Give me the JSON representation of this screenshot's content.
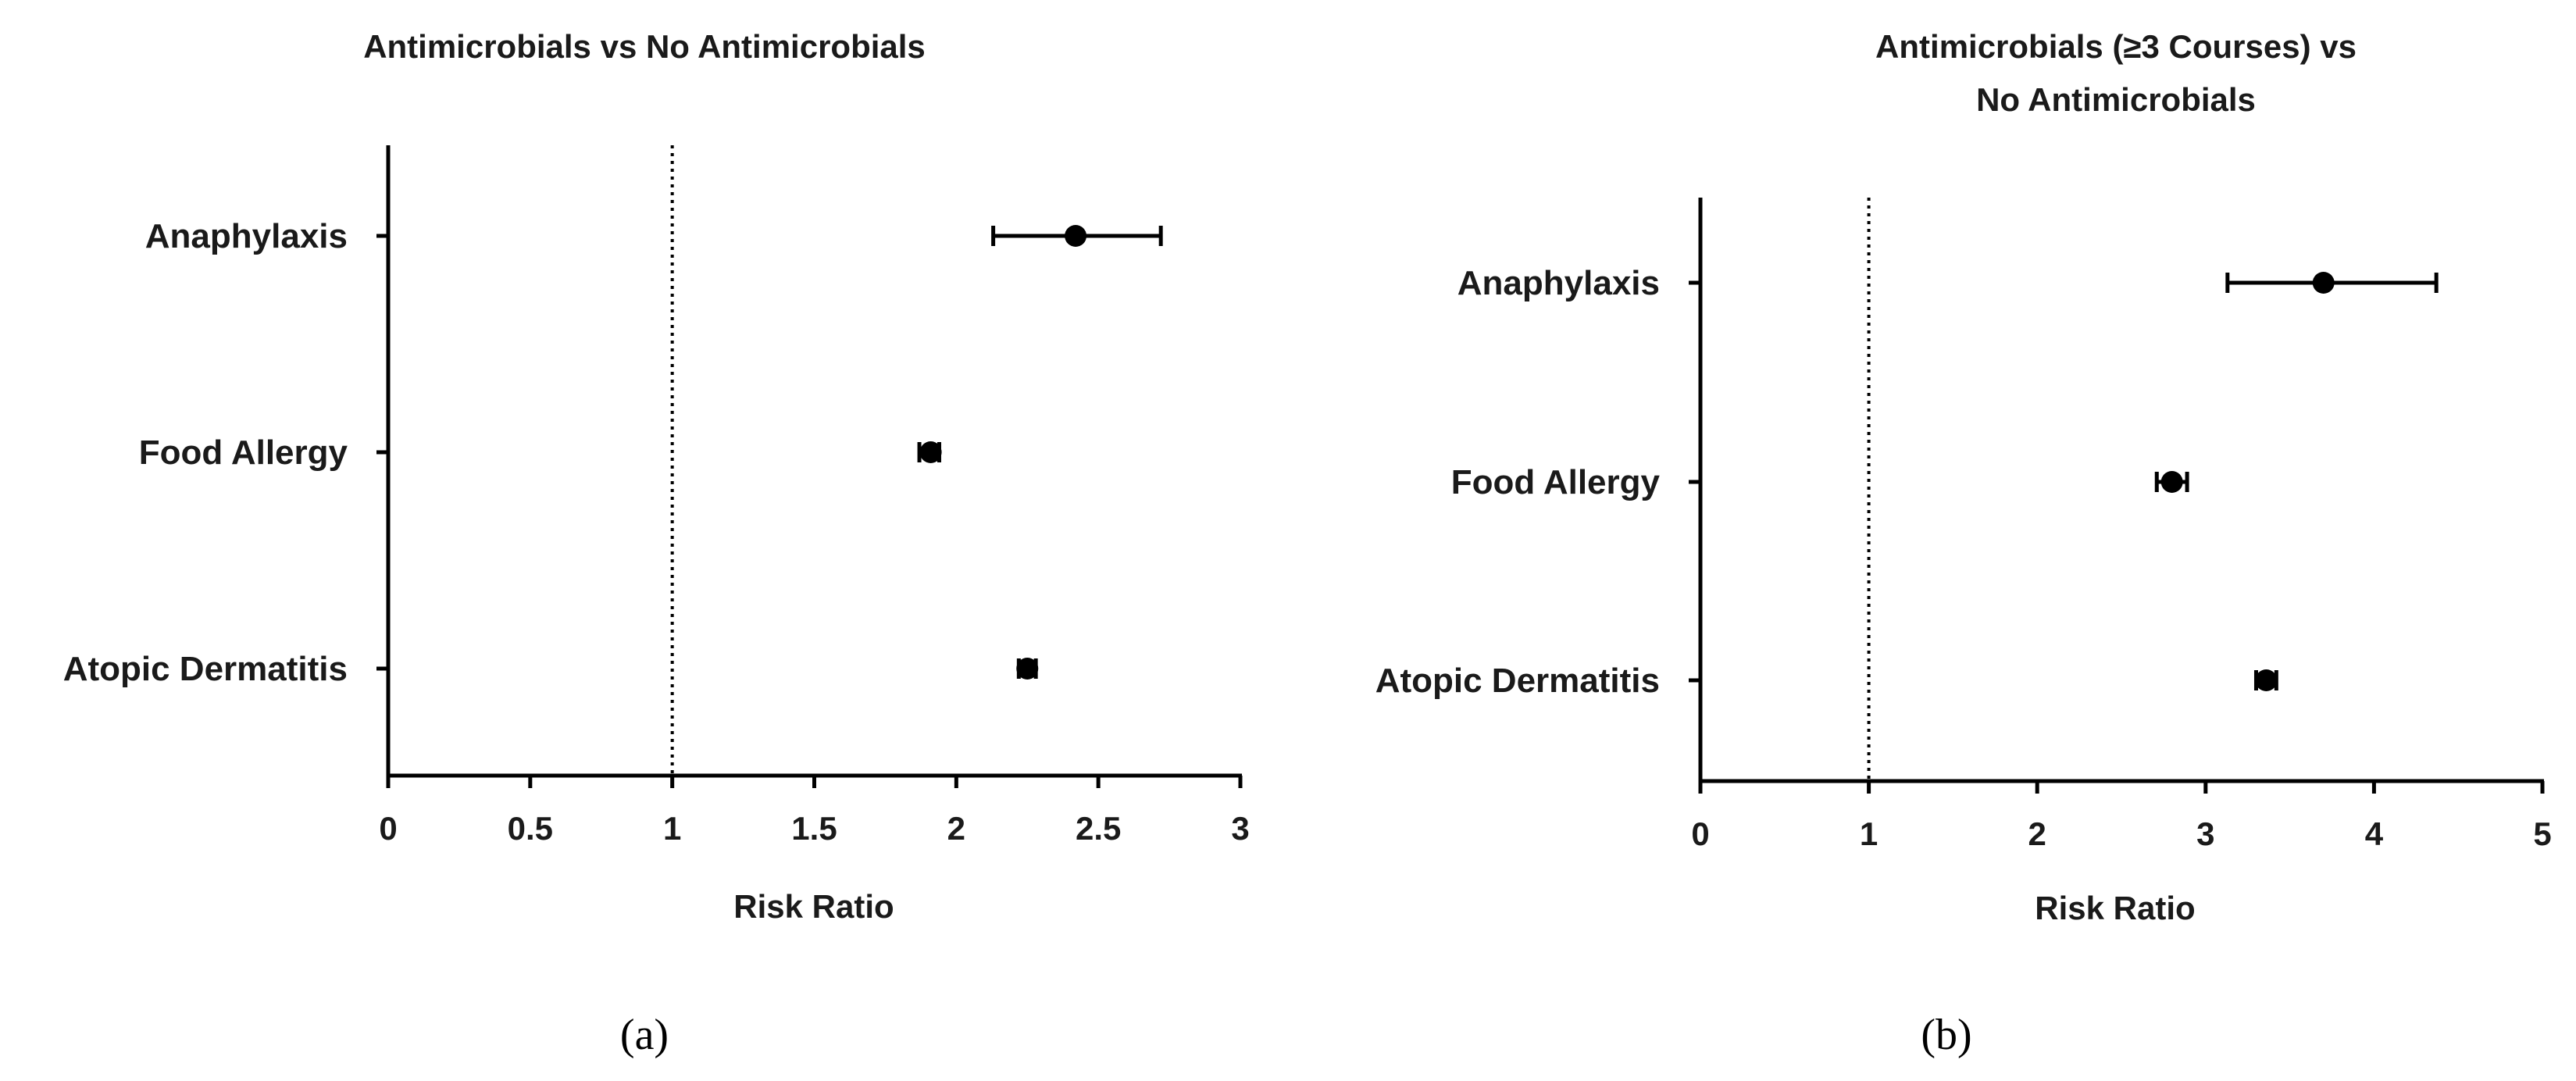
{
  "chart_data": [
    {
      "type": "scatter",
      "panel_label": "(a)",
      "title": "Antimicrobials vs No Antimicrobials",
      "title_lines": [
        "Antimicrobials vs No Antimicrobials"
      ],
      "xlabel": "Risk Ratio",
      "ylabel": "",
      "xlim": [
        0,
        3
      ],
      "xticks": [
        0,
        0.5,
        1,
        1.5,
        2,
        2.5,
        3
      ],
      "xtick_labels": [
        "0",
        "0.5",
        "1",
        "1.5",
        "2",
        "2.5",
        "3"
      ],
      "reference_line": 1,
      "grid": false,
      "categories": [
        "Anaphylaxis",
        "Food Allergy",
        "Atopic Dermatitis"
      ],
      "points": [
        {
          "label": "Anaphylaxis",
          "value": 2.42,
          "ci_low": 2.13,
          "ci_high": 2.72
        },
        {
          "label": "Food Allergy",
          "value": 1.91,
          "ci_low": 1.87,
          "ci_high": 1.94
        },
        {
          "label": "Atopic Dermatitis",
          "value": 2.25,
          "ci_low": 2.22,
          "ci_high": 2.28
        }
      ]
    },
    {
      "type": "scatter",
      "panel_label": "(b)",
      "title": "Antimicrobials (≥3 Courses) vs No Antimicrobials",
      "title_lines": [
        "Antimicrobials (≥3 Courses) vs",
        "No Antimicrobials"
      ],
      "xlabel": "Risk Ratio",
      "ylabel": "",
      "xlim": [
        0,
        5
      ],
      "xticks": [
        0,
        1,
        2,
        3,
        4,
        5
      ],
      "xtick_labels": [
        "0",
        "1",
        "2",
        "3",
        "4",
        "5"
      ],
      "reference_line": 1,
      "grid": false,
      "categories": [
        "Anaphylaxis",
        "Food Allergy",
        "Atopic Dermatitis"
      ],
      "points": [
        {
          "label": "Anaphylaxis",
          "value": 3.7,
          "ci_low": 3.13,
          "ci_high": 4.37
        },
        {
          "label": "Food Allergy",
          "value": 2.8,
          "ci_low": 2.71,
          "ci_high": 2.89
        },
        {
          "label": "Atopic Dermatitis",
          "value": 3.36,
          "ci_low": 3.3,
          "ci_high": 3.42
        }
      ]
    }
  ]
}
